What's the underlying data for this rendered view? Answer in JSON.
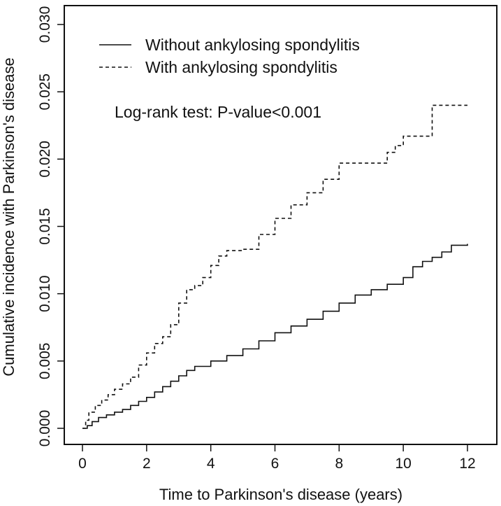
{
  "chart_data": {
    "type": "line",
    "title": "",
    "xlabel": "Time to Parkinson's disease (years)",
    "ylabel": "Cumulative incidence with Parkinson's disease",
    "xlim": [
      0,
      12
    ],
    "ylim": [
      0,
      0.03
    ],
    "x_ticks": [
      0,
      2,
      4,
      6,
      8,
      10,
      12
    ],
    "x_tick_labels": [
      "0",
      "2",
      "4",
      "6",
      "8",
      "10",
      "12"
    ],
    "y_ticks": [
      0,
      0.005,
      0.01,
      0.015,
      0.02,
      0.025,
      0.03
    ],
    "y_tick_labels": [
      "0.000",
      "0.005",
      "0.010",
      "0.015",
      "0.020",
      "0.025",
      "0.030"
    ],
    "grid": false,
    "legend_position": "top-left",
    "annotation": "Log-rank test: P-value<0.001",
    "series": [
      {
        "name": "Without ankylosing spondylitis",
        "line_style": "solid",
        "color": "#111111",
        "x": [
          0,
          0.15,
          0.3,
          0.5,
          0.75,
          1.0,
          1.25,
          1.5,
          1.75,
          2.0,
          2.25,
          2.5,
          2.75,
          3.0,
          3.25,
          3.5,
          4.0,
          4.5,
          5.0,
          5.5,
          6.0,
          6.5,
          7.0,
          7.5,
          8.0,
          8.5,
          9.0,
          9.5,
          10.0,
          10.3,
          10.6,
          10.9,
          11.2,
          11.5,
          12.0
        ],
        "y": [
          0.0,
          0.0002,
          0.0005,
          0.0008,
          0.001,
          0.0012,
          0.0014,
          0.0017,
          0.002,
          0.0023,
          0.0027,
          0.0031,
          0.0035,
          0.0039,
          0.0043,
          0.0046,
          0.005,
          0.0054,
          0.0059,
          0.0065,
          0.0071,
          0.0076,
          0.0081,
          0.0087,
          0.0093,
          0.0099,
          0.0103,
          0.0107,
          0.0112,
          0.012,
          0.0124,
          0.0127,
          0.0131,
          0.0136,
          0.0137
        ]
      },
      {
        "name": "With ankylosing spondylitis",
        "line_style": "dashed",
        "color": "#111111",
        "x": [
          0,
          0.1,
          0.2,
          0.4,
          0.6,
          0.8,
          1.0,
          1.25,
          1.5,
          1.75,
          2.0,
          2.25,
          2.5,
          2.75,
          3.0,
          3.25,
          3.5,
          3.75,
          4.0,
          4.25,
          4.5,
          5.0,
          5.5,
          6.0,
          6.5,
          7.0,
          7.5,
          8.0,
          8.5,
          9.0,
          9.5,
          9.75,
          10.0,
          10.5,
          10.9,
          11.5,
          12.0
        ],
        "y": [
          0.0,
          0.0006,
          0.0012,
          0.0017,
          0.0021,
          0.0025,
          0.0029,
          0.0033,
          0.0038,
          0.0047,
          0.0056,
          0.0063,
          0.0068,
          0.0077,
          0.0093,
          0.0103,
          0.0106,
          0.0112,
          0.0121,
          0.0128,
          0.0132,
          0.0133,
          0.0144,
          0.0156,
          0.0166,
          0.0175,
          0.0185,
          0.0197,
          0.0197,
          0.0197,
          0.0205,
          0.021,
          0.0217,
          0.0217,
          0.024,
          0.024,
          0.024
        ]
      }
    ]
  }
}
